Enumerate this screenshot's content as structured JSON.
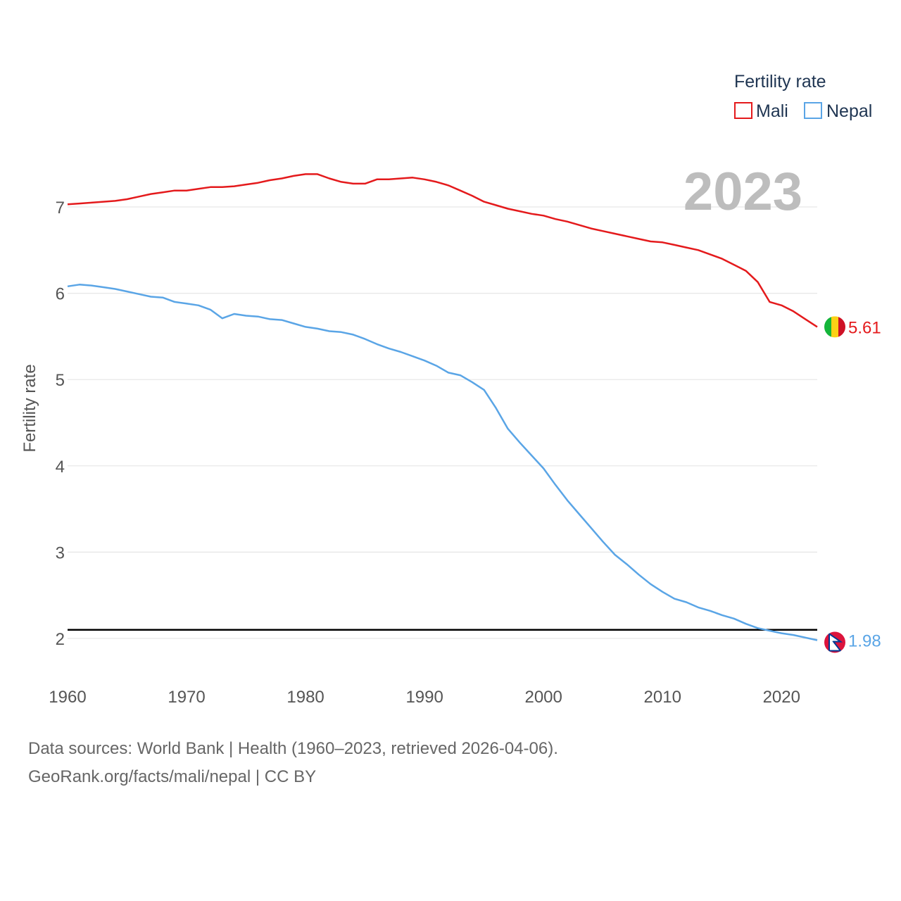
{
  "chart_data": {
    "type": "line",
    "title": "Fertility rate",
    "watermark_year": "2023",
    "ylabel": "Fertility rate",
    "xlabel": "",
    "xlim": [
      1960,
      2023
    ],
    "ylim": [
      1.5,
      7.7
    ],
    "x_ticks": [
      1960,
      1970,
      1980,
      1990,
      2000,
      2010,
      2020
    ],
    "y_ticks": [
      2,
      3,
      4,
      5,
      6,
      7
    ],
    "reference_line": 2.1,
    "legend": {
      "title": "Fertility rate",
      "placement": "top-right"
    },
    "series": [
      {
        "name": "Mali",
        "color": "#e41a1c",
        "end_label": "5.61",
        "flag": "mali-flag",
        "values": [
          7.03,
          7.04,
          7.05,
          7.06,
          7.07,
          7.09,
          7.12,
          7.15,
          7.17,
          7.19,
          7.19,
          7.21,
          7.23,
          7.23,
          7.24,
          7.26,
          7.28,
          7.31,
          7.33,
          7.36,
          7.38,
          7.38,
          7.33,
          7.29,
          7.27,
          7.27,
          7.32,
          7.32,
          7.33,
          7.34,
          7.32,
          7.29,
          7.25,
          7.19,
          7.13,
          7.06,
          7.02,
          6.98,
          6.95,
          6.92,
          6.9,
          6.86,
          6.83,
          6.79,
          6.75,
          6.72,
          6.69,
          6.66,
          6.63,
          6.6,
          6.59,
          6.56,
          6.53,
          6.5,
          6.45,
          6.4,
          6.33,
          6.26,
          6.13,
          5.9,
          5.86,
          5.79,
          5.7,
          5.61
        ]
      },
      {
        "name": "Nepal",
        "color": "#5aa5e6",
        "end_label": "1.98",
        "flag": "nepal-flag",
        "values": [
          6.08,
          6.1,
          6.09,
          6.07,
          6.05,
          6.02,
          5.99,
          5.96,
          5.95,
          5.9,
          5.88,
          5.86,
          5.81,
          5.71,
          5.76,
          5.74,
          5.73,
          5.7,
          5.69,
          5.65,
          5.61,
          5.59,
          5.56,
          5.55,
          5.52,
          5.47,
          5.41,
          5.36,
          5.32,
          5.27,
          5.22,
          5.16,
          5.08,
          5.05,
          4.97,
          4.88,
          4.67,
          4.43,
          4.27,
          4.12,
          3.97,
          3.78,
          3.6,
          3.44,
          3.28,
          3.12,
          2.97,
          2.86,
          2.74,
          2.63,
          2.54,
          2.46,
          2.42,
          2.36,
          2.32,
          2.27,
          2.23,
          2.17,
          2.12,
          2.09,
          2.06,
          2.04,
          2.01,
          1.98
        ]
      }
    ]
  },
  "footer": {
    "source_line": "Data sources: World Bank | Health (1960–2023, retrieved 2026-04-06).",
    "credit_line": "GeoRank.org/facts/mali/nepal | CC BY"
  }
}
